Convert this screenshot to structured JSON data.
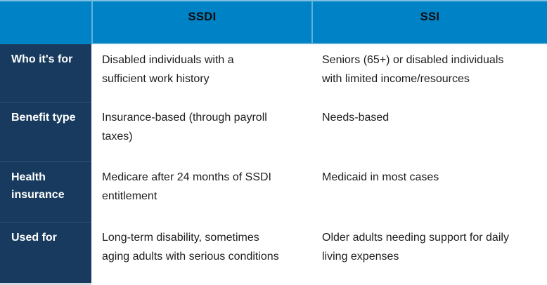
{
  "colors": {
    "header_bg": "#0082c6",
    "header_text": "#0c0c0c",
    "header_divider": "#63b1d9",
    "header_top_edge": "#7fc0e2",
    "label_col_bg": "#173a5e",
    "label_text": "#ffffff",
    "label_row_divider": "#2e5178",
    "body_bg": "#ffffff",
    "body_text": "#1e1e1e",
    "table_bottom_edge": "#d4dae1"
  },
  "table": {
    "header": {
      "corner": "",
      "col1": "SSDI",
      "col2": "SSI"
    },
    "rows": [
      {
        "label": "Who it's for",
        "ssdi": "Disabled individuals with a\nsufficient work history",
        "ssi": "Seniors (65+) or disabled individuals\nwith limited income/resources"
      },
      {
        "label": "Benefit type",
        "ssdi": "Insurance-based (through payroll\ntaxes)",
        "ssi": "Needs-based"
      },
      {
        "label": "Health\ninsurance",
        "ssdi": "Medicare after 24 months of SSDI\nentitlement",
        "ssi": "Medicaid in most cases"
      },
      {
        "label": "Used for",
        "ssdi": "Long-term disability, sometimes\naging adults with serious conditions",
        "ssi": "Older adults needing support for daily\nliving expenses"
      }
    ]
  }
}
